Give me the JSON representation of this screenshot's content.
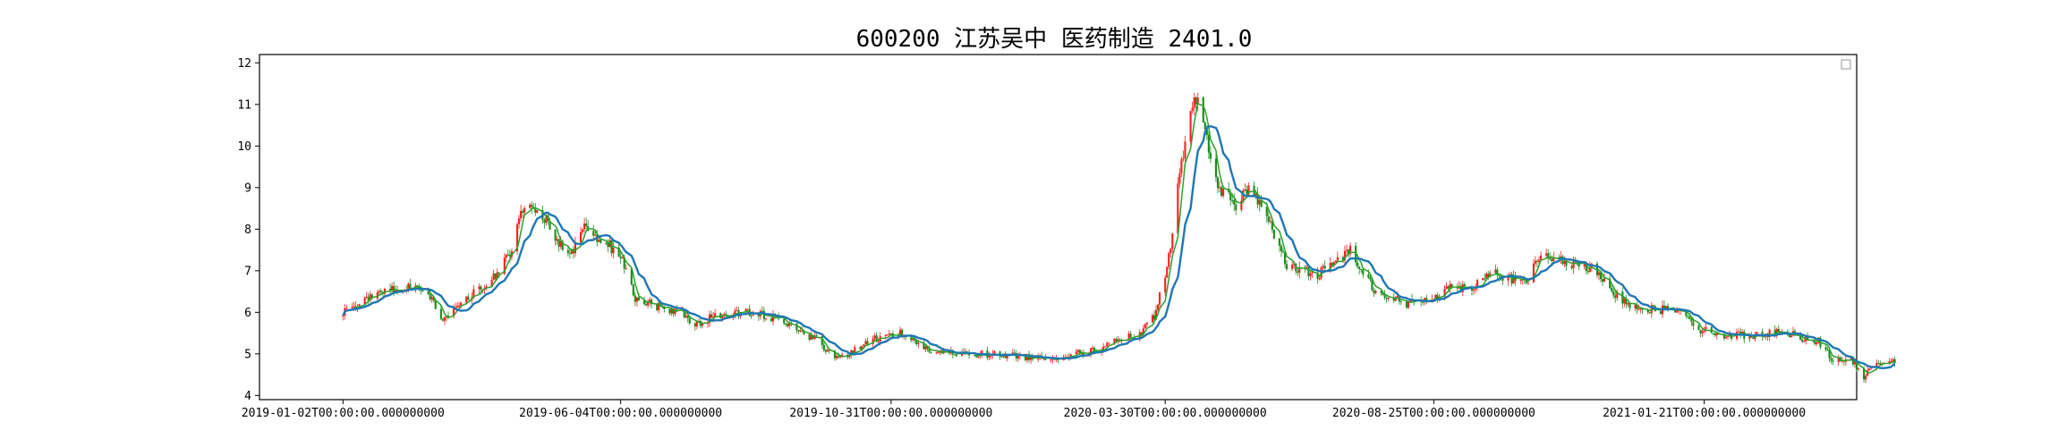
{
  "chart_data": {
    "type": "candlestick",
    "title": "600200 江苏吴中 医药制造 2401.0",
    "xlabel": "",
    "ylabel": "",
    "ylim": [
      3.9,
      12.2
    ],
    "yticks": [
      4,
      5,
      6,
      7,
      8,
      9,
      10,
      11,
      12
    ],
    "xlim": [
      "2018-11-17",
      "2021-04-15"
    ],
    "xticks": [
      "2019-01-02",
      "2019-06-04",
      "2019-10-31",
      "2020-03-30",
      "2020-08-25",
      "2021-01-21"
    ],
    "xtick_labels": [
      "2019-01-02T00:00:00.000000000",
      "2019-06-04T00:00:00.000000000",
      "2019-10-31T00:00:00.000000000",
      "2020-03-30T00:00:00.000000000",
      "2020-08-25T00:00:00.000000000",
      "2021-01-21T00:00:00.000000000"
    ],
    "grid": false,
    "legend": "top-right",
    "colors": {
      "up": "#ff2020",
      "down": "#1a8c1a",
      "ma_line": "#1f77b4",
      "ma_short": "#2ca02c"
    },
    "close_series": [
      [
        "2019-01-02",
        5.98
      ],
      [
        "2019-01-15",
        6.3
      ],
      [
        "2019-01-28",
        6.55
      ],
      [
        "2019-02-12",
        6.6
      ],
      [
        "2019-02-20",
        6.35
      ],
      [
        "2019-02-26",
        5.75
      ],
      [
        "2019-03-05",
        6.1
      ],
      [
        "2019-03-15",
        6.45
      ],
      [
        "2019-03-27",
        6.9
      ],
      [
        "2019-04-05",
        7.5
      ],
      [
        "2019-04-10",
        8.4
      ],
      [
        "2019-04-16",
        8.6
      ],
      [
        "2019-04-24",
        8.2
      ],
      [
        "2019-05-02",
        7.6
      ],
      [
        "2019-05-08",
        7.4
      ],
      [
        "2019-05-14",
        8.1
      ],
      [
        "2019-05-22",
        7.7
      ],
      [
        "2019-05-29",
        7.6
      ],
      [
        "2019-06-05",
        7.2
      ],
      [
        "2019-06-12",
        6.35
      ],
      [
        "2019-06-24",
        6.15
      ],
      [
        "2019-07-08",
        6.0
      ],
      [
        "2019-07-15",
        5.7
      ],
      [
        "2019-07-25",
        5.9
      ],
      [
        "2019-08-15",
        6.0
      ],
      [
        "2019-08-28",
        5.85
      ],
      [
        "2019-09-10",
        5.55
      ],
      [
        "2019-09-20",
        5.35
      ],
      [
        "2019-09-30",
        4.9
      ],
      [
        "2019-10-10",
        5.05
      ],
      [
        "2019-10-20",
        5.35
      ],
      [
        "2019-11-05",
        5.5
      ],
      [
        "2019-11-15",
        5.25
      ],
      [
        "2019-11-22",
        5.05
      ],
      [
        "2019-12-05",
        5.0
      ],
      [
        "2019-12-20",
        5.0
      ],
      [
        "2020-01-10",
        4.95
      ],
      [
        "2020-01-20",
        4.9
      ],
      [
        "2020-02-05",
        4.95
      ],
      [
        "2020-02-25",
        5.15
      ],
      [
        "2020-03-05",
        5.35
      ],
      [
        "2020-03-16",
        5.45
      ],
      [
        "2020-03-24",
        5.9
      ],
      [
        "2020-03-31",
        7.0
      ],
      [
        "2020-04-07",
        9.3
      ],
      [
        "2020-04-13",
        10.9
      ],
      [
        "2020-04-17",
        11.1
      ],
      [
        "2020-04-22",
        10.2
      ],
      [
        "2020-04-28",
        9.0
      ],
      [
        "2020-05-08",
        8.6
      ],
      [
        "2020-05-15",
        9.0
      ],
      [
        "2020-05-22",
        8.6
      ],
      [
        "2020-05-28",
        8.0
      ],
      [
        "2020-06-05",
        7.1
      ],
      [
        "2020-06-15",
        7.0
      ],
      [
        "2020-06-22",
        6.9
      ],
      [
        "2020-07-01",
        7.2
      ],
      [
        "2020-07-10",
        7.5
      ],
      [
        "2020-07-17",
        7.0
      ],
      [
        "2020-07-24",
        6.5
      ],
      [
        "2020-08-10",
        6.2
      ],
      [
        "2020-08-24",
        6.35
      ],
      [
        "2020-09-01",
        6.6
      ],
      [
        "2020-09-15",
        6.6
      ],
      [
        "2020-09-25",
        7.0
      ],
      [
        "2020-10-09",
        6.75
      ],
      [
        "2020-10-16",
        6.8
      ],
      [
        "2020-10-23",
        7.4
      ],
      [
        "2020-11-05",
        7.2
      ],
      [
        "2020-11-20",
        7.05
      ],
      [
        "2020-11-30",
        6.55
      ],
      [
        "2020-12-10",
        6.2
      ],
      [
        "2020-12-25",
        6.05
      ],
      [
        "2021-01-08",
        6.1
      ],
      [
        "2021-01-18",
        5.6
      ],
      [
        "2021-02-01",
        5.45
      ],
      [
        "2021-02-20",
        5.45
      ],
      [
        "2021-03-05",
        5.55
      ],
      [
        "2021-03-15",
        5.4
      ],
      [
        "2021-03-25",
        5.3
      ],
      [
        "2021-04-02",
        4.85
      ],
      [
        "2021-04-12",
        4.85
      ],
      [
        "2021-04-19",
        4.45
      ],
      [
        "2021-04-27",
        4.8
      ],
      [
        "2021-05-06",
        4.85
      ]
    ]
  }
}
